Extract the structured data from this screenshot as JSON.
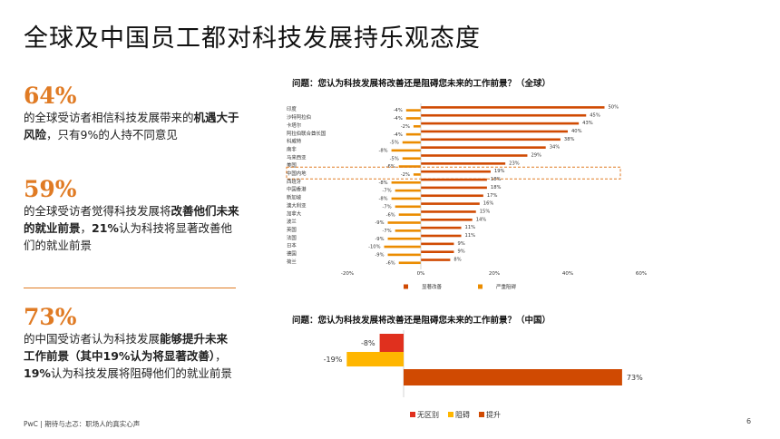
{
  "title": "全球及中国员工都对科技发展持乐观态度",
  "stats": [
    {
      "value": "64%",
      "t1": "的全球受访者相信科技发展带来的",
      "b1": "机遇大于风险",
      "t2": "，只有9%的人持不同意见",
      "b2": "",
      "t3": ""
    },
    {
      "value": "59%",
      "t1": "的全球受访者觉得科技发展将",
      "b1": "改善他们未来的就业前景",
      "t2": "，",
      "b2": "21%",
      "t3": "认为科技将显著改善他们的就业前景"
    },
    {
      "value": "73%",
      "t1": "的中国受访者认为科技发展",
      "b1": "能够提升未来工作前景（其中19%认为将显著改善）",
      "t2": "，",
      "b2": "19%",
      "t3": "认为科技发展将阻碍他们的就业前景"
    }
  ],
  "footer": "PwC | 期待与忐忑：职场人的真实心声",
  "page_number": "6",
  "chart_data": [
    {
      "type": "bar",
      "orientation": "horizontal",
      "title": "问题：您认为科技发展将改善还是阻碍您未来的工作前景？（全球）",
      "categories": [
        "印度",
        "沙特阿拉伯",
        "卡塔尔",
        "阿拉伯联合酋长国",
        "科威特",
        "南非",
        "马来西亚",
        "美国",
        "中国内地",
        "西班牙",
        "中国香港",
        "新加坡",
        "澳大利亚",
        "加拿大",
        "波兰",
        "英国",
        "法国",
        "日本",
        "德国",
        "荷兰"
      ],
      "series": [
        {
          "name": "显著改善",
          "color": "#d04a02",
          "values": [
            50,
            45,
            43,
            40,
            38,
            34,
            29,
            23,
            19,
            18,
            18,
            17,
            16,
            15,
            14,
            11,
            11,
            9,
            9,
            8
          ]
        },
        {
          "name": "严重阻碍",
          "color": "#eb8c00",
          "values": [
            -4,
            -4,
            -2,
            -4,
            -5,
            -8,
            -5,
            -6,
            -2,
            -8,
            -7,
            -8,
            -7,
            -6,
            -9,
            -7,
            -9,
            -10,
            -9,
            -6
          ]
        }
      ],
      "highlight": "中国内地",
      "xticks": [
        "-20%",
        "0%",
        "20%",
        "40%",
        "60%"
      ],
      "xlim": [
        -20,
        60
      ],
      "legend_position": "bottom"
    },
    {
      "type": "bar",
      "orientation": "horizontal",
      "title": "问题：您认为科技发展将改善还是阻碍您未来的工作前景？（中国）",
      "series": [
        {
          "name": "无区别",
          "color": "#e0301e",
          "value": -8,
          "label": "-8%"
        },
        {
          "name": "阻碍",
          "color": "#ffb600",
          "value": -19,
          "label": "-19%"
        },
        {
          "name": "提升",
          "color": "#d04a02",
          "value": 73,
          "label": "73%"
        }
      ],
      "legend_position": "bottom"
    }
  ]
}
